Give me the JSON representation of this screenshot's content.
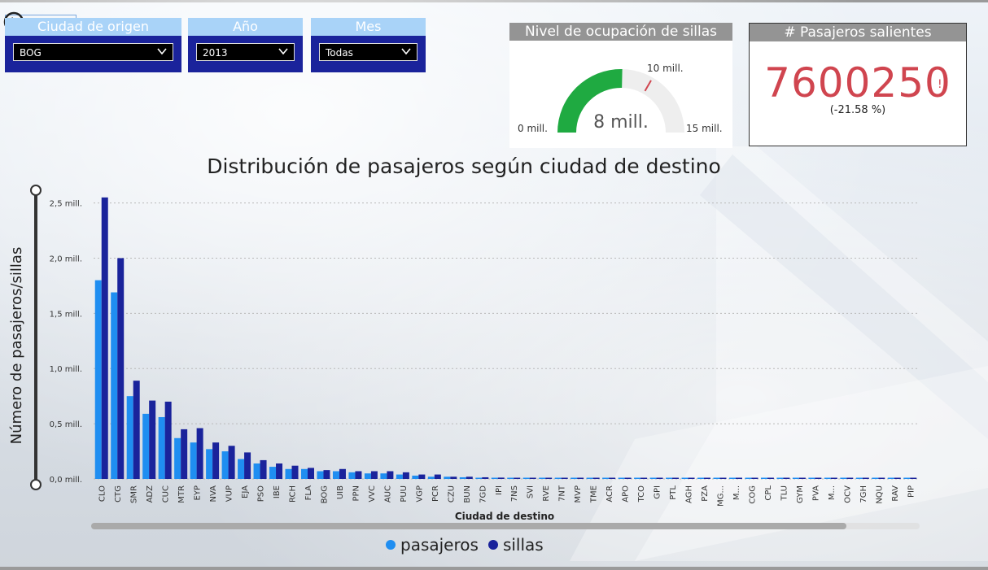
{
  "filters": {
    "origin": {
      "label": "Ciudad de origen",
      "value": "BOG"
    },
    "year": {
      "label": "Año",
      "value": "2013"
    },
    "month": {
      "label": "Mes",
      "value": "Todas"
    }
  },
  "gauge": {
    "title": "Nivel de ocupación de sillas",
    "value_label": "8 mill.",
    "min_label": "0 mill.",
    "max_label": "15 mill.",
    "target_label": "10 mill.",
    "value": 7.6,
    "min": 0,
    "max": 15,
    "target": 10,
    "fill_color": "#1faa41"
  },
  "kpi": {
    "title": "# Pasajeros salientes",
    "value": "7600250",
    "change": "(-21.58 %)",
    "alert_mark": "!",
    "color": "#d0454f"
  },
  "icons": {
    "back": "back-arrow-icon",
    "dropdown": "chevron-down-icon"
  },
  "chart_data": {
    "type": "bar",
    "title": "Distribución de pasajeros según ciudad de destino",
    "xlabel": "Ciudad de destino",
    "ylabel": "Número de pasajeros/sillas",
    "ylim": [
      0,
      2.6
    ],
    "y_unit": "mill.",
    "yticks": [
      0,
      0.5,
      1.0,
      1.5,
      2.0,
      2.5
    ],
    "ytick_labels": [
      "0,0 mill.",
      "0,5 mill.",
      "1,0 mill.",
      "1,5 mill.",
      "2,0 mill.",
      "2,5 mill."
    ],
    "grid": true,
    "legend_position": "bottom",
    "categories": [
      "CLO",
      "CTG",
      "SMR",
      "ADZ",
      "CUC",
      "MTR",
      "EYP",
      "NVA",
      "VUP",
      "EJA",
      "PSO",
      "IBE",
      "RCH",
      "FLA",
      "BOG",
      "UIB",
      "PPN",
      "VVC",
      "AUC",
      "PUU",
      "VGP",
      "PCR",
      "CZU",
      "BUN",
      "7GD",
      "IPI",
      "7NS",
      "SVI",
      "RVE",
      "7NT",
      "MVP",
      "TME",
      "ACR",
      "APO",
      "TCO",
      "GPI",
      "PTL",
      "AGH",
      "PZA",
      "MG...",
      "M...",
      "COG",
      "CPL",
      "TLU",
      "GYM",
      "PVA",
      "M...",
      "OCV",
      "7GH",
      "NQU",
      "RAV",
      "PIP"
    ],
    "series": [
      {
        "name": "pasajeros",
        "color": "#1f8ef1",
        "values": [
          1.8,
          1.69,
          0.75,
          0.59,
          0.56,
          0.37,
          0.33,
          0.27,
          0.25,
          0.18,
          0.14,
          0.11,
          0.09,
          0.09,
          0.07,
          0.07,
          0.06,
          0.05,
          0.05,
          0.04,
          0.03,
          0.02,
          0.02,
          0.015,
          0.01,
          0.01,
          0.01,
          0.01,
          0.01,
          0.008,
          0.008,
          0.008,
          0.008,
          0.008,
          0.008,
          0.006,
          0.006,
          0.006,
          0.006,
          0.005,
          0.005,
          0.005,
          0.005,
          0.005,
          0.005,
          0.005,
          0.005,
          0.005,
          0.004,
          0.004,
          0.004,
          0.004
        ]
      },
      {
        "name": "sillas",
        "color": "#1a239b",
        "values": [
          2.55,
          2.0,
          0.89,
          0.71,
          0.7,
          0.45,
          0.46,
          0.33,
          0.3,
          0.24,
          0.17,
          0.14,
          0.12,
          0.1,
          0.08,
          0.09,
          0.07,
          0.07,
          0.07,
          0.06,
          0.04,
          0.04,
          0.02,
          0.02,
          0.015,
          0.012,
          0.01,
          0.01,
          0.01,
          0.008,
          0.01,
          0.01,
          0.01,
          0.01,
          0.01,
          0.006,
          0.006,
          0.006,
          0.01,
          0.006,
          0.006,
          0.006,
          0.01,
          0.006,
          0.006,
          0.01,
          0.01,
          0.01,
          0.006,
          0.006,
          0.01,
          0.006
        ]
      }
    ]
  }
}
